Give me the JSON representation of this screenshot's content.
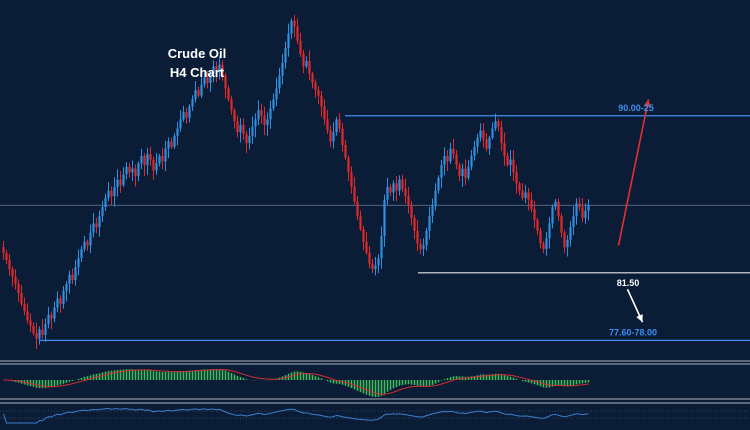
{
  "chart_data": {
    "type": "candlestick",
    "title": "Crude Oil",
    "subtitle": "H4 Chart",
    "colors": {
      "background": "#0b1c36",
      "bull": "#2f8fe0",
      "bear": "#e02a2a",
      "resistance": "#3d8ff0",
      "support": "#e6e6e6",
      "target_low": "#3d8ff0",
      "up_arrow": "#e23030",
      "down_arrow": "#ffffff",
      "macd_hist": "#3fbf5a",
      "macd_signal": "#d23030",
      "rsi_line": "#3a7fd0"
    },
    "levels": [
      {
        "name": "resistance",
        "label": "90.00-25",
        "price": 90.1
      },
      {
        "name": "mid",
        "label": "",
        "price": 85.2
      },
      {
        "name": "support",
        "label": "81.50",
        "price": 81.5
      },
      {
        "name": "target-low",
        "label": "77.60-78.00",
        "price": 77.8
      }
    ],
    "ylim": [
      77.0,
      96.0
    ],
    "closes": [
      82.6,
      82.2,
      81.7,
      81.3,
      80.9,
      80.4,
      79.8,
      79.4,
      78.9,
      78.6,
      78.2,
      77.9,
      78.4,
      78.1,
      78.7,
      79.2,
      79.0,
      79.6,
      80.1,
      79.8,
      80.5,
      80.9,
      81.4,
      81.1,
      81.8,
      82.3,
      82.8,
      83.2,
      83.0,
      83.7,
      84.2,
      84.0,
      84.6,
      85.1,
      85.6,
      86.0,
      85.7,
      86.2,
      86.6,
      86.3,
      86.9,
      87.3,
      87.0,
      87.2,
      86.8,
      87.5,
      87.9,
      87.4,
      88.0,
      87.7,
      87.1,
      87.5,
      87.9,
      87.6,
      88.3,
      88.7,
      88.4,
      89.0,
      89.4,
      89.9,
      90.3,
      90.0,
      90.6,
      91.0,
      91.5,
      91.2,
      91.8,
      92.2,
      91.9,
      92.4,
      92.8,
      92.5,
      92.9,
      92.3,
      91.6,
      91.0,
      90.4,
      89.8,
      89.2,
      89.6,
      89.1,
      88.6,
      89.0,
      89.5,
      89.9,
      90.4,
      90.1,
      89.6,
      89.9,
      90.5,
      91.0,
      91.6,
      92.3,
      93.0,
      93.8,
      94.6,
      95.3,
      95.0,
      94.2,
      93.5,
      92.8,
      93.1,
      92.4,
      91.9,
      91.5,
      91.2,
      90.6,
      89.9,
      89.3,
      88.7,
      89.2,
      89.9,
      89.4,
      88.5,
      87.8,
      87.0,
      86.2,
      85.4,
      84.6,
      83.9,
      83.2,
      82.6,
      82.0,
      81.7,
      81.9,
      82.3,
      83.5,
      85.5,
      86.2,
      85.9,
      86.4,
      86.0,
      86.6,
      86.1,
      85.7,
      85.2,
      84.5,
      83.8,
      83.1,
      82.8,
      83.0,
      83.8,
      84.6,
      85.2,
      86.0,
      86.7,
      87.4,
      87.9,
      87.6,
      88.3,
      88.0,
      87.4,
      86.8,
      87.2,
      86.7,
      87.3,
      87.9,
      88.4,
      88.9,
      89.3,
      88.8,
      88.3,
      88.9,
      89.4,
      89.8,
      89.5,
      88.6,
      87.9,
      87.4,
      87.7,
      87.0,
      86.4,
      86.0,
      85.6,
      85.9,
      85.5,
      85.0,
      84.4,
      83.8,
      83.1,
      82.8,
      83.4,
      84.2,
      85.1,
      85.4,
      84.6,
      83.7,
      82.9,
      83.3,
      84.0,
      84.6,
      85.3,
      85.1,
      84.5,
      84.9,
      85.2
    ],
    "up_arrow": {
      "from": [
        205,
        83.0
      ],
      "to": [
        215,
        91.0
      ]
    },
    "down_arrow": {
      "from": [
        208,
        80.6
      ],
      "to": [
        213,
        78.8
      ]
    }
  }
}
